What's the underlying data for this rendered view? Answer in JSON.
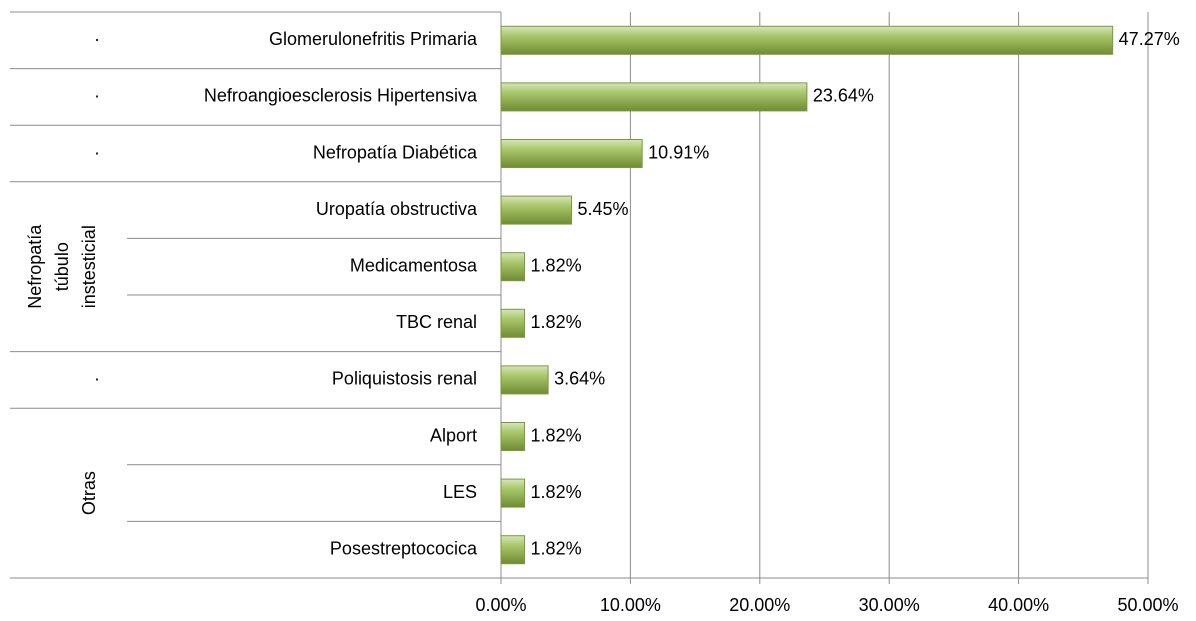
{
  "chart_data": {
    "type": "bar",
    "groups": [
      {
        "label": "·",
        "categories": [
          "Glomerulonefritis Primaria"
        ],
        "values": [
          47.27
        ],
        "value_labels": [
          "47.27%"
        ]
      },
      {
        "label": "·",
        "categories": [
          "Nefroangioesclerosis Hipertensiva"
        ],
        "values": [
          23.64
        ],
        "value_labels": [
          "23.64%"
        ]
      },
      {
        "label": "·",
        "categories": [
          "Nefropatía Diabética"
        ],
        "values": [
          10.91
        ],
        "value_labels": [
          "10.91%"
        ]
      },
      {
        "label": "Nefropatía túbulo instesticial",
        "categories": [
          "Uropatía obstructiva",
          "Medicamentosa",
          "TBC renal"
        ],
        "values": [
          5.45,
          1.82,
          1.82
        ],
        "value_labels": [
          "5.45%",
          "1.82%",
          "1.82%"
        ]
      },
      {
        "label": "·",
        "categories": [
          "Poliquistosis renal"
        ],
        "values": [
          3.64
        ],
        "value_labels": [
          "3.64%"
        ]
      },
      {
        "label": "Otras",
        "categories": [
          "Alport",
          "LES",
          "Posestreptococica"
        ],
        "values": [
          1.82,
          1.82,
          1.82
        ],
        "value_labels": [
          "1.82%",
          "1.82%",
          "1.82%"
        ]
      }
    ],
    "color": "#9bbb59",
    "xlim": [
      0,
      50
    ],
    "xticks": [
      {
        "value": 0,
        "label": "0.00%"
      },
      {
        "value": 10,
        "label": "10.00%"
      },
      {
        "value": 20,
        "label": "20.00%"
      },
      {
        "value": 30,
        "label": "30.00%"
      },
      {
        "value": 40,
        "label": "40.00%"
      },
      {
        "value": 50,
        "label": "50.00%"
      }
    ],
    "grid": true
  }
}
